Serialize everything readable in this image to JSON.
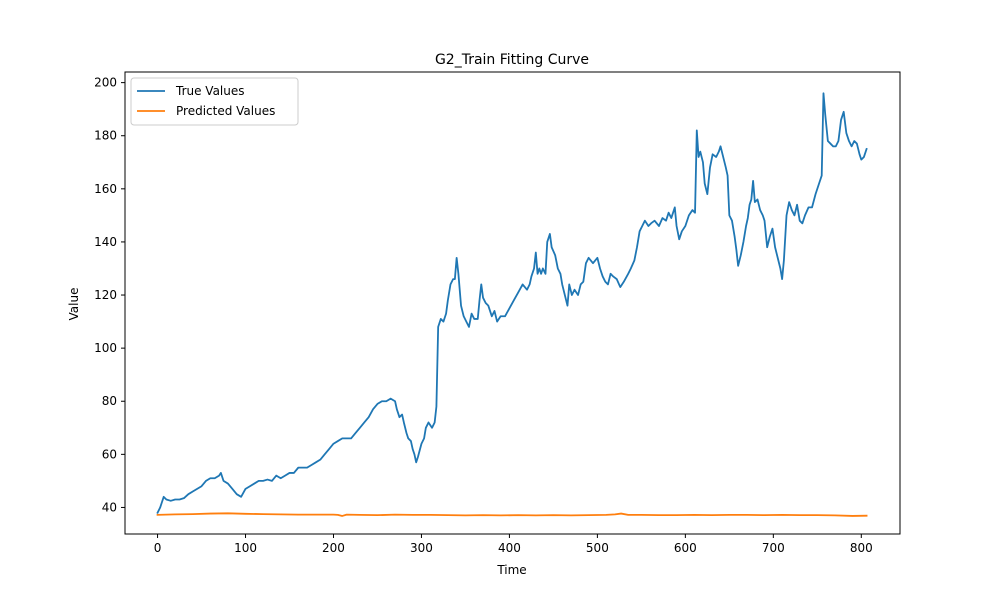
{
  "chart_data": {
    "type": "line",
    "title": "G2_Train Fitting Curve",
    "xlabel": "Time",
    "ylabel": "Value",
    "xlim": [
      -37,
      844
    ],
    "ylim": [
      30,
      204
    ],
    "xticks": [
      0,
      100,
      200,
      300,
      400,
      500,
      600,
      700,
      800
    ],
    "yticks": [
      40,
      60,
      80,
      100,
      120,
      140,
      160,
      180,
      200
    ],
    "grid": false,
    "legend": "top-left",
    "series": [
      {
        "name": "True Values",
        "color": "#1f77b4",
        "points": [
          [
            0,
            38
          ],
          [
            3,
            40
          ],
          [
            5,
            42
          ],
          [
            7,
            44
          ],
          [
            10,
            43
          ],
          [
            15,
            42.5
          ],
          [
            20,
            43
          ],
          [
            25,
            43
          ],
          [
            30,
            43.5
          ],
          [
            35,
            45
          ],
          [
            40,
            46
          ],
          [
            45,
            47
          ],
          [
            50,
            48
          ],
          [
            55,
            50
          ],
          [
            60,
            51
          ],
          [
            65,
            51
          ],
          [
            70,
            52
          ],
          [
            72,
            53
          ],
          [
            75,
            50
          ],
          [
            80,
            49
          ],
          [
            85,
            47
          ],
          [
            90,
            45
          ],
          [
            95,
            44
          ],
          [
            100,
            47
          ],
          [
            105,
            48
          ],
          [
            110,
            49
          ],
          [
            115,
            50
          ],
          [
            120,
            50
          ],
          [
            125,
            50.5
          ],
          [
            130,
            50
          ],
          [
            135,
            52
          ],
          [
            140,
            51
          ],
          [
            145,
            52
          ],
          [
            150,
            53
          ],
          [
            155,
            53
          ],
          [
            160,
            55
          ],
          [
            165,
            55
          ],
          [
            170,
            55
          ],
          [
            175,
            56
          ],
          [
            180,
            57
          ],
          [
            185,
            58
          ],
          [
            190,
            60
          ],
          [
            195,
            62
          ],
          [
            200,
            64
          ],
          [
            205,
            65
          ],
          [
            210,
            66
          ],
          [
            215,
            66
          ],
          [
            220,
            66
          ],
          [
            225,
            68
          ],
          [
            230,
            70
          ],
          [
            235,
            72
          ],
          [
            240,
            74
          ],
          [
            245,
            77
          ],
          [
            250,
            79
          ],
          [
            255,
            80
          ],
          [
            260,
            80
          ],
          [
            265,
            81
          ],
          [
            270,
            80
          ],
          [
            272,
            77
          ],
          [
            275,
            74
          ],
          [
            278,
            75
          ],
          [
            280,
            72
          ],
          [
            283,
            68
          ],
          [
            285,
            66
          ],
          [
            288,
            65
          ],
          [
            290,
            62
          ],
          [
            292,
            60
          ],
          [
            294,
            57
          ],
          [
            296,
            59
          ],
          [
            300,
            64
          ],
          [
            303,
            66
          ],
          [
            305,
            70
          ],
          [
            308,
            72
          ],
          [
            312,
            70
          ],
          [
            315,
            72
          ],
          [
            317,
            78
          ],
          [
            319,
            108
          ],
          [
            322,
            111
          ],
          [
            325,
            110
          ],
          [
            328,
            113
          ],
          [
            330,
            118
          ],
          [
            333,
            124
          ],
          [
            336,
            126
          ],
          [
            338,
            126
          ],
          [
            340,
            134
          ],
          [
            342,
            128
          ],
          [
            345,
            116
          ],
          [
            348,
            112
          ],
          [
            351,
            110
          ],
          [
            354,
            108
          ],
          [
            357,
            113
          ],
          [
            360,
            111
          ],
          [
            364,
            111
          ],
          [
            366,
            118
          ],
          [
            368,
            124
          ],
          [
            370,
            119
          ],
          [
            373,
            117
          ],
          [
            376,
            116
          ],
          [
            380,
            112
          ],
          [
            383,
            114
          ],
          [
            386,
            110
          ],
          [
            390,
            112
          ],
          [
            395,
            112
          ],
          [
            400,
            115
          ],
          [
            405,
            118
          ],
          [
            410,
            121
          ],
          [
            415,
            124
          ],
          [
            420,
            122
          ],
          [
            423,
            124
          ],
          [
            425,
            127
          ],
          [
            428,
            130
          ],
          [
            430,
            136
          ],
          [
            432,
            128
          ],
          [
            434,
            130
          ],
          [
            436,
            128
          ],
          [
            438,
            130
          ],
          [
            441,
            128
          ],
          [
            443,
            140
          ],
          [
            446,
            143
          ],
          [
            448,
            138
          ],
          [
            452,
            135
          ],
          [
            455,
            130
          ],
          [
            458,
            128
          ],
          [
            460,
            124
          ],
          [
            463,
            120
          ],
          [
            466,
            116
          ],
          [
            468,
            124
          ],
          [
            471,
            120
          ],
          [
            474,
            122
          ],
          [
            478,
            120
          ],
          [
            481,
            124
          ],
          [
            484,
            125
          ],
          [
            487,
            132
          ],
          [
            490,
            134
          ],
          [
            495,
            132
          ],
          [
            500,
            134
          ],
          [
            503,
            130
          ],
          [
            506,
            127
          ],
          [
            509,
            125
          ],
          [
            512,
            124
          ],
          [
            515,
            128
          ],
          [
            518,
            127
          ],
          [
            522,
            126
          ],
          [
            526,
            123
          ],
          [
            530,
            125
          ],
          [
            535,
            128
          ],
          [
            538,
            130
          ],
          [
            542,
            133
          ],
          [
            545,
            138
          ],
          [
            548,
            144
          ],
          [
            551,
            146
          ],
          [
            554,
            148
          ],
          [
            558,
            146
          ],
          [
            561,
            147
          ],
          [
            565,
            148
          ],
          [
            570,
            146
          ],
          [
            574,
            149
          ],
          [
            578,
            148
          ],
          [
            581,
            151
          ],
          [
            584,
            149
          ],
          [
            588,
            153
          ],
          [
            590,
            146
          ],
          [
            593,
            141
          ],
          [
            596,
            144
          ],
          [
            600,
            146
          ],
          [
            604,
            150
          ],
          [
            608,
            152
          ],
          [
            611,
            151
          ],
          [
            613,
            182
          ],
          [
            615,
            172
          ],
          [
            617,
            174
          ],
          [
            620,
            170
          ],
          [
            622,
            162
          ],
          [
            625,
            158
          ],
          [
            628,
            168
          ],
          [
            631,
            173
          ],
          [
            635,
            172
          ],
          [
            638,
            174
          ],
          [
            640,
            176
          ],
          [
            643,
            172
          ],
          [
            646,
            168
          ],
          [
            648,
            165
          ],
          [
            650,
            150
          ],
          [
            653,
            148
          ],
          [
            656,
            142
          ],
          [
            658,
            137
          ],
          [
            660,
            131
          ],
          [
            663,
            135
          ],
          [
            666,
            140
          ],
          [
            669,
            146
          ],
          [
            671,
            149
          ],
          [
            673,
            154
          ],
          [
            675,
            156
          ],
          [
            677,
            163
          ],
          [
            679,
            155
          ],
          [
            682,
            156
          ],
          [
            685,
            152
          ],
          [
            688,
            150
          ],
          [
            690,
            148
          ],
          [
            693,
            138
          ],
          [
            696,
            142
          ],
          [
            699,
            145
          ],
          [
            702,
            138
          ],
          [
            705,
            134
          ],
          [
            708,
            130
          ],
          [
            710,
            126
          ],
          [
            712,
            133
          ],
          [
            715,
            150
          ],
          [
            718,
            155
          ],
          [
            721,
            152
          ],
          [
            724,
            150
          ],
          [
            727,
            154
          ],
          [
            730,
            148
          ],
          [
            733,
            147
          ],
          [
            736,
            150
          ],
          [
            740,
            153
          ],
          [
            744,
            153
          ],
          [
            748,
            158
          ],
          [
            752,
            162
          ],
          [
            755,
            165
          ],
          [
            757,
            196
          ],
          [
            759,
            188
          ],
          [
            762,
            178
          ],
          [
            765,
            177
          ],
          [
            768,
            176
          ],
          [
            771,
            176
          ],
          [
            774,
            178
          ],
          [
            777,
            186
          ],
          [
            780,
            189
          ],
          [
            783,
            181
          ],
          [
            786,
            178
          ],
          [
            789,
            176
          ],
          [
            792,
            178
          ],
          [
            795,
            177
          ],
          [
            798,
            173
          ],
          [
            800,
            171
          ],
          [
            803,
            172
          ],
          [
            806,
            175
          ]
        ]
      },
      {
        "name": "Predicted Values",
        "color": "#ff7f0e",
        "points": [
          [
            0,
            37.2
          ],
          [
            20,
            37.4
          ],
          [
            40,
            37.5
          ],
          [
            60,
            37.7
          ],
          [
            80,
            37.8
          ],
          [
            100,
            37.6
          ],
          [
            120,
            37.5
          ],
          [
            140,
            37.4
          ],
          [
            160,
            37.3
          ],
          [
            180,
            37.3
          ],
          [
            200,
            37.3
          ],
          [
            205,
            37.2
          ],
          [
            210,
            36.8
          ],
          [
            215,
            37.3
          ],
          [
            230,
            37.2
          ],
          [
            250,
            37.1
          ],
          [
            270,
            37.3
          ],
          [
            290,
            37.2
          ],
          [
            310,
            37.2
          ],
          [
            330,
            37.1
          ],
          [
            350,
            37.0
          ],
          [
            370,
            37.1
          ],
          [
            390,
            37.0
          ],
          [
            410,
            37.1
          ],
          [
            430,
            37.0
          ],
          [
            450,
            37.1
          ],
          [
            470,
            37.0
          ],
          [
            490,
            37.1
          ],
          [
            510,
            37.2
          ],
          [
            520,
            37.4
          ],
          [
            527,
            37.7
          ],
          [
            535,
            37.2
          ],
          [
            550,
            37.2
          ],
          [
            570,
            37.1
          ],
          [
            590,
            37.1
          ],
          [
            610,
            37.2
          ],
          [
            630,
            37.1
          ],
          [
            650,
            37.2
          ],
          [
            670,
            37.2
          ],
          [
            690,
            37.1
          ],
          [
            710,
            37.2
          ],
          [
            730,
            37.1
          ],
          [
            750,
            37.1
          ],
          [
            770,
            37.0
          ],
          [
            790,
            36.8
          ],
          [
            806,
            36.9
          ]
        ]
      }
    ]
  }
}
